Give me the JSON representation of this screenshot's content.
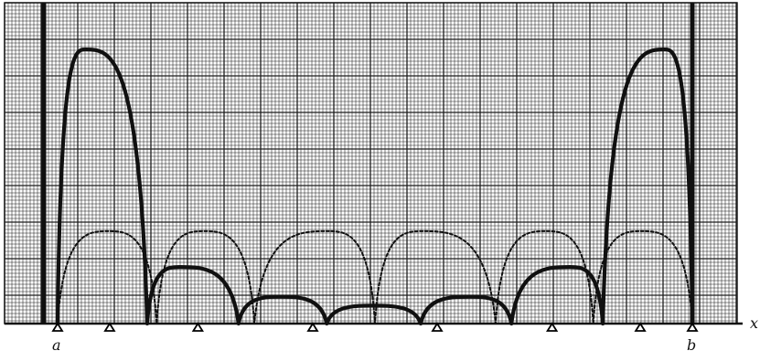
{
  "chart_data": {
    "type": "line",
    "xlabel": "x",
    "endpoint_labels": {
      "left": "a",
      "right": "b"
    },
    "grid": true,
    "x_range": [
      0,
      1
    ],
    "y_range": [
      0,
      1
    ],
    "colors": {
      "paper": "#ffffff",
      "grid": "#1e1e1e",
      "curve": "#101010",
      "marker": "#000000"
    },
    "series": [
      {
        "style": "thick-solid",
        "points": [
          [
            0.0,
            0.0
          ],
          [
            0.044,
            0.92
          ],
          [
            0.141,
            0.0
          ],
          [
            0.193,
            0.19
          ],
          [
            0.285,
            0.0
          ],
          [
            0.351,
            0.09
          ],
          [
            0.424,
            0.0
          ],
          [
            0.497,
            0.06
          ],
          [
            0.572,
            0.0
          ],
          [
            0.649,
            0.09
          ],
          [
            0.715,
            0.0
          ],
          [
            0.807,
            0.19
          ],
          [
            0.859,
            0.0
          ],
          [
            0.956,
            0.92
          ],
          [
            1.0,
            0.0
          ]
        ]
      },
      {
        "style": "thin-dashed",
        "points": [
          [
            0.0,
            0.0
          ],
          [
            0.08,
            0.31
          ],
          [
            0.156,
            0.0
          ],
          [
            0.231,
            0.31
          ],
          [
            0.31,
            0.0
          ],
          [
            0.425,
            0.31
          ],
          [
            0.5,
            0.0
          ],
          [
            0.575,
            0.31
          ],
          [
            0.69,
            0.0
          ],
          [
            0.769,
            0.31
          ],
          [
            0.844,
            0.0
          ],
          [
            0.92,
            0.31
          ],
          [
            1.0,
            0.0
          ]
        ]
      }
    ],
    "markers": {
      "symbol": "triangle",
      "x": [
        0.0,
        0.082,
        0.221,
        0.402,
        0.598,
        0.779,
        0.918,
        1.0
      ]
    }
  }
}
